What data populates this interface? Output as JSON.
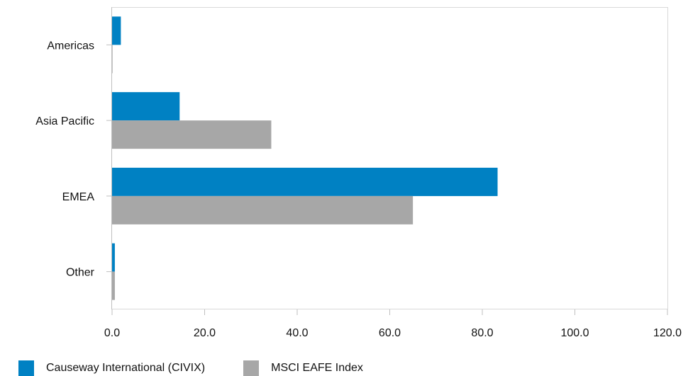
{
  "chart_data": {
    "type": "bar",
    "orientation": "horizontal",
    "categories": [
      "Americas",
      "Asia Pacific",
      "EMEA",
      "Other"
    ],
    "series": [
      {
        "name": "Causeway International (CIVIX)",
        "color": "#0081c3",
        "values": [
          1.9,
          14.6,
          83.3,
          0.6
        ]
      },
      {
        "name": "MSCI EAFE Index",
        "color": "#a7a7a7",
        "values": [
          0.1,
          34.4,
          65.0,
          0.6
        ]
      }
    ],
    "xlim": [
      0,
      120
    ],
    "x_ticks": [
      "0.0",
      "20.0",
      "40.0",
      "60.0",
      "80.0",
      "100.0",
      "120.0"
    ],
    "title": "",
    "xlabel": "",
    "ylabel": "",
    "grid": false,
    "legend_position": "bottom-left"
  }
}
